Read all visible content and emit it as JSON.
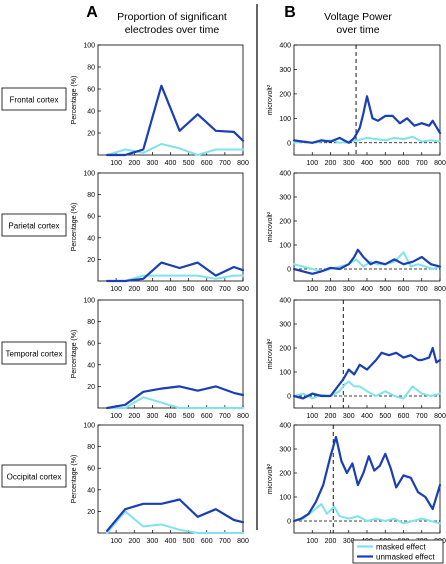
{
  "figure": {
    "panel_a_letter": "A",
    "panel_b_letter": "B",
    "panel_a_title_lines": [
      "Proportion of significant",
      "electrodes over time"
    ],
    "panel_b_title_lines": [
      "Voltage Power",
      "over time"
    ],
    "colors": {
      "masked": "#7fe3ee",
      "unmasked": "#1a3fb5"
    }
  },
  "legend": {
    "masked_label": "masked effect",
    "unmasked_label": "unmasked effect"
  },
  "chart_data": [
    {
      "type": "line",
      "panel": "A",
      "region": "Frontal cortex",
      "xlabel": "",
      "ylabel": "Percentage (%)",
      "xlim": [
        0,
        800
      ],
      "ylim": [
        0,
        100
      ],
      "xticks": [
        100,
        200,
        300,
        400,
        500,
        600,
        700,
        800
      ],
      "yticks": [
        20,
        40,
        60,
        80,
        100
      ],
      "series": [
        {
          "key": "masked",
          "x": [
            50,
            150,
            250,
            350,
            450,
            550,
            650,
            750,
            800
          ],
          "y": [
            0,
            5,
            2,
            10,
            6,
            0,
            5,
            5,
            5
          ]
        },
        {
          "key": "unmasked",
          "x": [
            50,
            150,
            250,
            350,
            450,
            550,
            650,
            750,
            800
          ],
          "y": [
            0,
            0,
            5,
            63,
            22,
            37,
            22,
            21,
            13
          ]
        }
      ]
    },
    {
      "type": "line",
      "panel": "B",
      "region": "Frontal cortex",
      "xlabel": "",
      "ylabel": "microvolt²",
      "xlim": [
        0,
        800
      ],
      "ylim": [
        -50,
        400
      ],
      "xticks": [
        100,
        200,
        300,
        400,
        500,
        600,
        700,
        800
      ],
      "yticks": [
        0,
        100,
        200,
        300,
        400
      ],
      "vline_x": 340,
      "series": [
        {
          "key": "masked",
          "x": [
            0,
            50,
            100,
            150,
            200,
            250,
            300,
            350,
            400,
            450,
            500,
            550,
            600,
            650,
            700,
            750,
            800
          ],
          "y": [
            0,
            5,
            0,
            5,
            10,
            0,
            5,
            10,
            20,
            15,
            10,
            20,
            15,
            25,
            5,
            10,
            5
          ]
        },
        {
          "key": "unmasked",
          "x": [
            0,
            50,
            100,
            150,
            200,
            250,
            300,
            330,
            360,
            380,
            400,
            430,
            460,
            500,
            540,
            580,
            620,
            660,
            700,
            740,
            760,
            800
          ],
          "y": [
            10,
            5,
            0,
            10,
            5,
            20,
            0,
            20,
            60,
            120,
            190,
            100,
            90,
            110,
            110,
            80,
            100,
            70,
            80,
            70,
            90,
            40
          ]
        }
      ]
    },
    {
      "type": "line",
      "panel": "A",
      "region": "Parietal cortex",
      "xlabel": "",
      "ylabel": "Percentage (%)",
      "xlim": [
        0,
        800
      ],
      "ylim": [
        0,
        100
      ],
      "xticks": [
        100,
        200,
        300,
        400,
        500,
        600,
        700,
        800
      ],
      "yticks": [
        20,
        40,
        60,
        80,
        100
      ],
      "series": [
        {
          "key": "masked",
          "x": [
            50,
            150,
            250,
            350,
            450,
            550,
            650,
            750,
            800
          ],
          "y": [
            0,
            0,
            5,
            5,
            5,
            5,
            2,
            5,
            5
          ]
        },
        {
          "key": "unmasked",
          "x": [
            50,
            150,
            250,
            350,
            450,
            550,
            650,
            750,
            800
          ],
          "y": [
            0,
            0,
            2,
            17,
            12,
            17,
            5,
            13,
            10
          ]
        }
      ]
    },
    {
      "type": "line",
      "panel": "B",
      "region": "Parietal cortex",
      "xlabel": "",
      "ylabel": "microvolt²",
      "xlim": [
        0,
        800
      ],
      "ylim": [
        -50,
        400
      ],
      "xticks": [
        100,
        200,
        300,
        400,
        500,
        600,
        700,
        800
      ],
      "yticks": [
        0,
        100,
        200,
        300,
        400
      ],
      "series": [
        {
          "key": "masked",
          "x": [
            0,
            50,
            100,
            150,
            200,
            250,
            300,
            340,
            380,
            420,
            460,
            500,
            550,
            600,
            640,
            680,
            720,
            760,
            800
          ],
          "y": [
            20,
            10,
            0,
            -10,
            0,
            10,
            20,
            40,
            10,
            30,
            20,
            20,
            30,
            70,
            10,
            20,
            10,
            0,
            10
          ]
        },
        {
          "key": "unmasked",
          "x": [
            0,
            50,
            100,
            150,
            200,
            250,
            300,
            330,
            350,
            380,
            420,
            450,
            500,
            550,
            600,
            650,
            700,
            750,
            800
          ],
          "y": [
            0,
            -10,
            -20,
            -10,
            5,
            0,
            20,
            50,
            80,
            50,
            20,
            30,
            20,
            40,
            20,
            30,
            50,
            20,
            10
          ]
        }
      ]
    },
    {
      "type": "line",
      "panel": "A",
      "region": "Temporal cortex",
      "xlabel": "",
      "ylabel": "Percentage (%)",
      "xlim": [
        0,
        800
      ],
      "ylim": [
        0,
        100
      ],
      "xticks": [
        100,
        200,
        300,
        400,
        500,
        600,
        700,
        800
      ],
      "yticks": [
        20,
        40,
        60,
        80,
        100
      ],
      "series": [
        {
          "key": "masked",
          "x": [
            50,
            150,
            250,
            350,
            450,
            550,
            650,
            750,
            800
          ],
          "y": [
            0,
            0,
            10,
            5,
            0,
            0,
            0,
            0,
            0
          ]
        },
        {
          "key": "unmasked",
          "x": [
            50,
            150,
            250,
            350,
            450,
            550,
            650,
            750,
            800
          ],
          "y": [
            0,
            3,
            15,
            18,
            20,
            16,
            20,
            14,
            12
          ]
        }
      ]
    },
    {
      "type": "line",
      "panel": "B",
      "region": "Temporal cortex",
      "xlabel": "",
      "ylabel": "microvolt²",
      "xlim": [
        0,
        800
      ],
      "ylim": [
        -50,
        400
      ],
      "xticks": [
        100,
        200,
        300,
        400,
        500,
        600,
        700,
        800
      ],
      "yticks": [
        0,
        100,
        200,
        300,
        400
      ],
      "vline_x": 270,
      "series": [
        {
          "key": "masked",
          "x": [
            0,
            50,
            100,
            150,
            200,
            250,
            280,
            300,
            330,
            360,
            400,
            450,
            500,
            550,
            600,
            650,
            700,
            750,
            800
          ],
          "y": [
            0,
            10,
            -10,
            5,
            0,
            20,
            50,
            60,
            40,
            40,
            20,
            0,
            20,
            0,
            -10,
            40,
            10,
            0,
            10
          ]
        },
        {
          "key": "unmasked",
          "x": [
            0,
            50,
            100,
            150,
            200,
            230,
            270,
            300,
            330,
            360,
            400,
            450,
            480,
            520,
            560,
            600,
            640,
            680,
            700,
            740,
            760,
            780,
            800
          ],
          "y": [
            0,
            -10,
            10,
            0,
            0,
            30,
            70,
            110,
            90,
            130,
            110,
            150,
            180,
            170,
            180,
            160,
            170,
            150,
            150,
            160,
            200,
            140,
            150
          ]
        }
      ]
    },
    {
      "type": "line",
      "panel": "A",
      "region": "Occipital cortex",
      "xlabel": "",
      "ylabel": "Percentage (%)",
      "xlim": [
        0,
        800
      ],
      "ylim": [
        0,
        100
      ],
      "xticks": [
        100,
        200,
        300,
        400,
        500,
        600,
        700,
        800
      ],
      "yticks": [
        20,
        40,
        60,
        80,
        100
      ],
      "series": [
        {
          "key": "masked",
          "x": [
            50,
            150,
            250,
            350,
            450,
            550,
            650,
            750,
            800
          ],
          "y": [
            0,
            20,
            6,
            8,
            3,
            0,
            0,
            0,
            0
          ]
        },
        {
          "key": "unmasked",
          "x": [
            50,
            150,
            250,
            350,
            450,
            550,
            650,
            750,
            800
          ],
          "y": [
            2,
            22,
            27,
            27,
            31,
            15,
            22,
            12,
            10
          ]
        }
      ]
    },
    {
      "type": "line",
      "panel": "B",
      "region": "Occipital cortex",
      "xlabel": "",
      "ylabel": "microvolt²",
      "xlim": [
        0,
        800
      ],
      "ylim": [
        -50,
        400
      ],
      "xticks": [
        100,
        200,
        300,
        400,
        500,
        600,
        700,
        800
      ],
      "yticks": [
        0,
        100,
        200,
        300,
        400
      ],
      "vline_x": 215,
      "series": [
        {
          "key": "masked",
          "x": [
            0,
            50,
            100,
            150,
            180,
            220,
            250,
            300,
            350,
            400,
            450,
            500,
            550,
            600,
            650,
            700,
            750,
            800
          ],
          "y": [
            0,
            10,
            40,
            70,
            30,
            60,
            20,
            10,
            20,
            0,
            10,
            0,
            10,
            -10,
            0,
            10,
            0,
            -10
          ]
        },
        {
          "key": "unmasked",
          "x": [
            0,
            40,
            80,
            120,
            160,
            200,
            230,
            260,
            290,
            320,
            350,
            380,
            410,
            440,
            470,
            500,
            530,
            560,
            600,
            640,
            680,
            720,
            760,
            800
          ],
          "y": [
            0,
            10,
            30,
            80,
            150,
            270,
            350,
            250,
            200,
            240,
            150,
            200,
            270,
            210,
            230,
            280,
            220,
            140,
            190,
            180,
            120,
            100,
            50,
            150
          ]
        }
      ]
    }
  ]
}
